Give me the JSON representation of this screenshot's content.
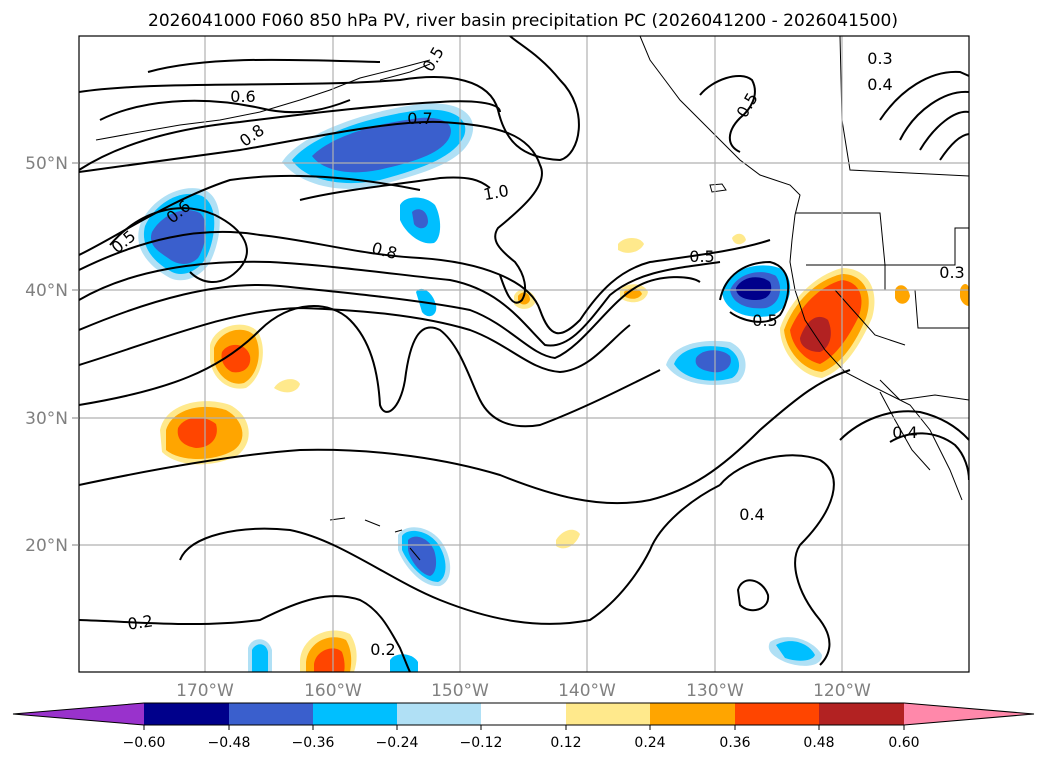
{
  "title": "2026041000 F060 850 hPa PV, river basin precipitation PC (2026041200 - 2026041500)",
  "map": {
    "lat_ticks": [
      "50°N",
      "40°N",
      "30°N",
      "20°N"
    ],
    "lon_ticks": [
      "170°W",
      "160°W",
      "150°W",
      "140°W",
      "130°W",
      "120°W"
    ],
    "contour_labels": [
      "0.6",
      "0.7",
      "0.8",
      "0.6",
      "0.5",
      "1.0",
      "0.8",
      "0.5",
      "0.5",
      "0.3",
      "0.4",
      "0.4",
      "0.4",
      "0.2",
      "0.2",
      "0.3",
      "0.5",
      "0.5"
    ]
  },
  "colorbar": {
    "colors": [
      "#9932cc",
      "#00008b",
      "#3a5fcd",
      "#00bfff",
      "#b0e0f5",
      "#ffffff",
      "#ffe98c",
      "#ffa500",
      "#ff4500",
      "#b22222",
      "#ff88aa"
    ],
    "labels": [
      "−0.60",
      "−0.48",
      "−0.36",
      "−0.24",
      "−0.12",
      "0.12",
      "0.24",
      "0.36",
      "0.48",
      "0.60"
    ]
  }
}
